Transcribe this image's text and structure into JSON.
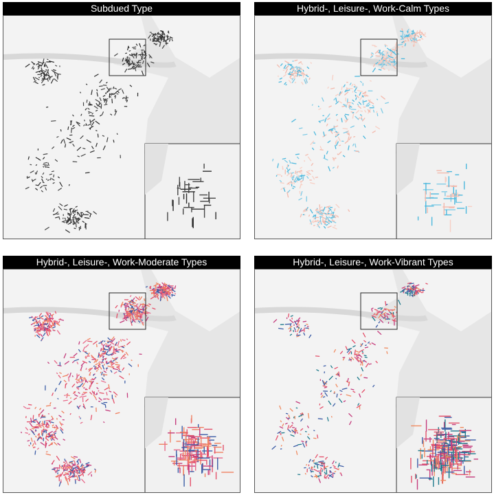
{
  "panels": [
    {
      "title": "Subdued Type"
    },
    {
      "title": "Hybrid-, Leisure-, Work-Calm Types"
    },
    {
      "title": "Hybrid-, Leisure-, Work-Moderate Types"
    },
    {
      "title": "Hybrid-, Leisure-, Work-Vibrant Types"
    }
  ]
}
